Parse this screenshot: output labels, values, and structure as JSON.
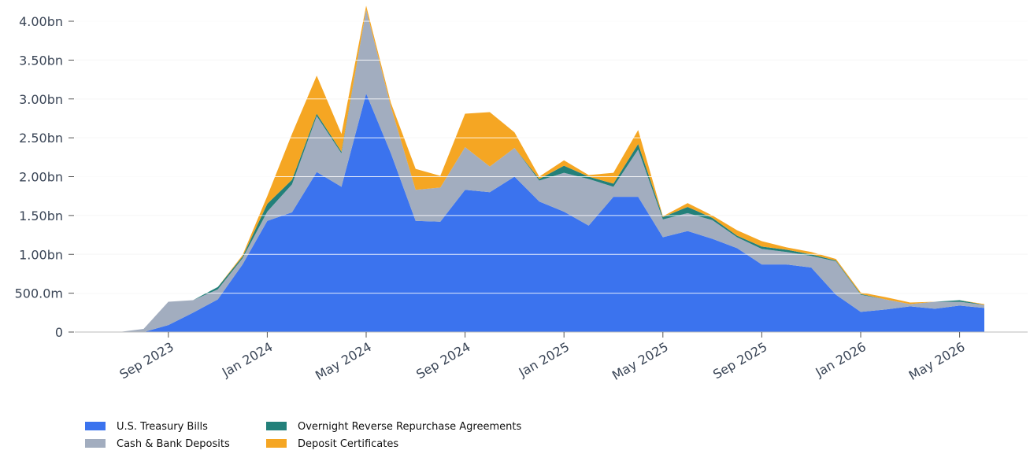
{
  "chart_data": {
    "type": "stacked_area",
    "x": [
      "2023-07",
      "2023-08",
      "2023-09",
      "2023-10",
      "2023-11",
      "2023-12",
      "2024-01",
      "2024-02",
      "2024-03",
      "2024-04",
      "2024-05",
      "2024-06",
      "2024-07",
      "2024-08",
      "2024-09",
      "2024-10",
      "2024-11",
      "2024-12",
      "2025-01",
      "2025-02",
      "2025-03",
      "2025-04",
      "2025-05",
      "2025-06",
      "2025-07",
      "2025-08",
      "2025-09",
      "2025-10",
      "2025-11",
      "2025-12",
      "2026-01",
      "2026-02",
      "2026-03",
      "2026-04",
      "2026-05",
      "2026-06"
    ],
    "series": [
      {
        "name": "U.S. Treasury Bills",
        "color": "#3b73ee",
        "values": [
          0,
          0,
          0.09,
          0.25,
          0.42,
          0.87,
          1.43,
          1.54,
          2.06,
          1.87,
          3.07,
          2.3,
          1.43,
          1.42,
          1.83,
          1.8,
          2.0,
          1.68,
          1.55,
          1.37,
          1.74,
          1.74,
          1.22,
          1.3,
          1.2,
          1.08,
          0.87,
          0.87,
          0.83,
          0.48,
          0.26,
          0.29,
          0.33,
          0.3,
          0.34,
          0.31
        ]
      },
      {
        "name": "Cash & Bank Deposits",
        "color": "#a2adbf",
        "values": [
          0,
          0.04,
          0.3,
          0.16,
          0.13,
          0.08,
          0.12,
          0.36,
          0.72,
          0.43,
          1.08,
          0.6,
          0.4,
          0.44,
          0.55,
          0.33,
          0.37,
          0.27,
          0.5,
          0.6,
          0.13,
          0.61,
          0.23,
          0.23,
          0.24,
          0.14,
          0.2,
          0.16,
          0.15,
          0.43,
          0.22,
          0.13,
          0.03,
          0.09,
          0.05,
          0.04
        ]
      },
      {
        "name": "Overnight Reverse Repurchase Agreements",
        "color": "#23807a",
        "values": [
          0,
          0,
          0,
          0,
          0.03,
          0.02,
          0.1,
          0.06,
          0.03,
          0.02,
          0,
          0,
          0,
          0,
          0,
          0,
          0,
          0.02,
          0.09,
          0.03,
          0.04,
          0.07,
          0.03,
          0.08,
          0.03,
          0.02,
          0.03,
          0.03,
          0.02,
          0.01,
          0.01,
          0,
          0,
          0,
          0.02,
          0
        ]
      },
      {
        "name": "Deposit Certificates",
        "color": "#f5a623",
        "values": [
          0,
          0,
          0,
          0,
          0,
          0.02,
          0.1,
          0.59,
          0.49,
          0.23,
          0.05,
          0.05,
          0.27,
          0.15,
          0.43,
          0.7,
          0.2,
          0.03,
          0.07,
          0.02,
          0.14,
          0.18,
          0.01,
          0.05,
          0.03,
          0.07,
          0.07,
          0.03,
          0.03,
          0.02,
          0.02,
          0.03,
          0.02,
          0,
          0,
          0.01
        ]
      }
    ],
    "xticks": [
      {
        "value": "2023-09",
        "label": "Sep 2023"
      },
      {
        "value": "2024-01",
        "label": "Jan 2024"
      },
      {
        "value": "2024-05",
        "label": "May 2024"
      },
      {
        "value": "2024-09",
        "label": "Sep 2024"
      },
      {
        "value": "2025-01",
        "label": "Jan 2025"
      },
      {
        "value": "2025-05",
        "label": "May 2025"
      },
      {
        "value": "2025-09",
        "label": "Sep 2025"
      },
      {
        "value": "2026-01",
        "label": "Jan 2026"
      },
      {
        "value": "2026-05",
        "label": "May 2026"
      }
    ],
    "ylim": [
      0,
      4.25
    ],
    "yticks": [
      0,
      {
        "value": 0.5,
        "label": "500.0m"
      },
      {
        "value": 1,
        "label": "1.00bn"
      },
      {
        "value": 1.5,
        "label": "1.50bn"
      },
      {
        "value": 2,
        "label": "2.00bn"
      },
      {
        "value": 2.5,
        "label": "2.50bn"
      },
      {
        "value": 3,
        "label": "3.00bn"
      },
      {
        "value": 3.5,
        "label": "3.50bn"
      },
      {
        "value": 4,
        "label": "4.00bn"
      }
    ],
    "grid": true,
    "legend": "bottom-left"
  }
}
